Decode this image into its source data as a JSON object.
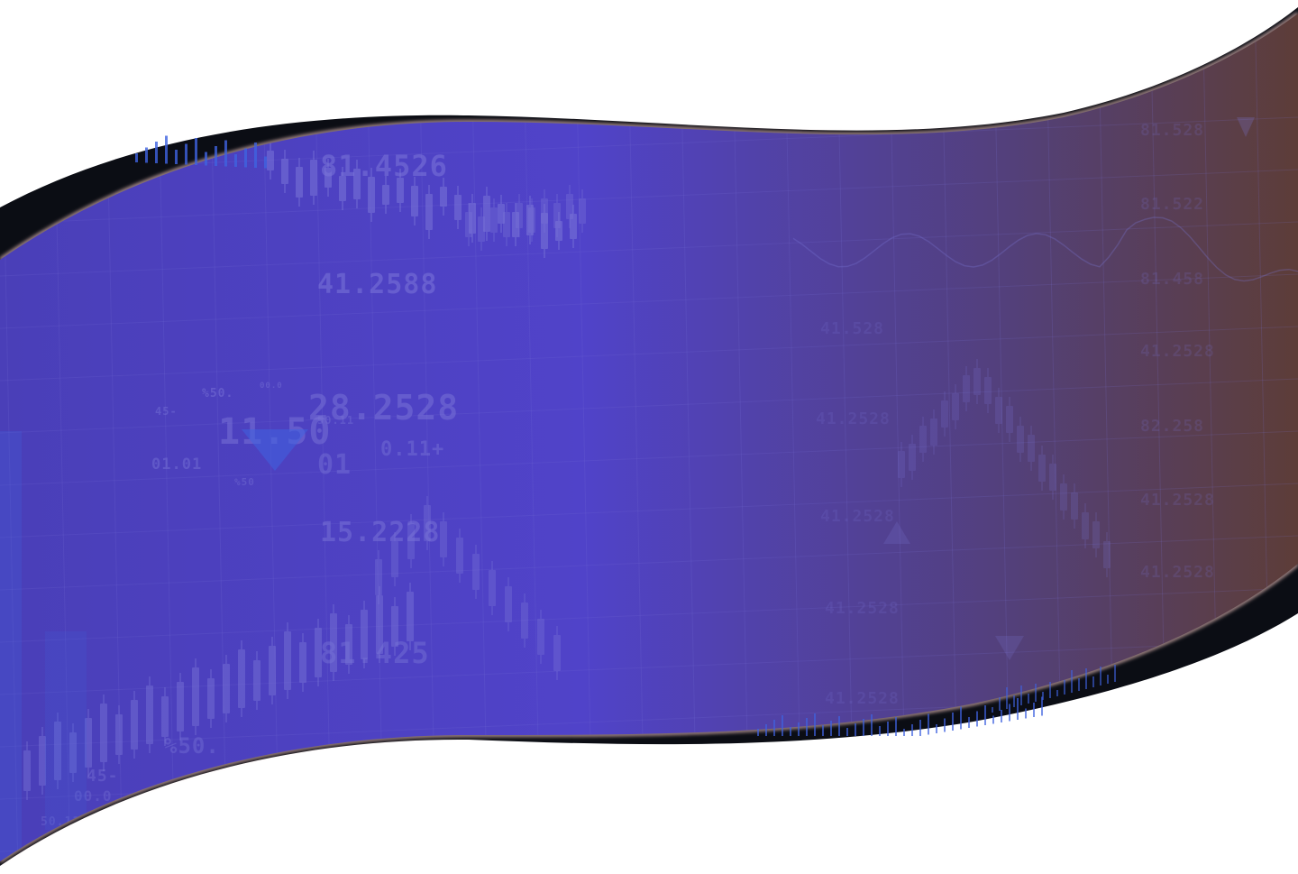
{
  "banner": {
    "colors": {
      "gradient_start": "#4a3fb8",
      "gradient_mid": "#5043c9",
      "gradient_dark": "#53407a",
      "gradient_end": "#5d3d38",
      "edge_dark": "#0b0d14",
      "edge_glow": "#f4c9c4",
      "page_background": "#ffffff",
      "chart_line": "#7b76d8",
      "accent_blue": "#3f63e0"
    },
    "ticker_labels": [
      {
        "text": "81.4526"
      },
      {
        "text": "41.2588"
      },
      {
        "text": "%50."
      },
      {
        "text": "00.0"
      },
      {
        "text": "45-"
      },
      {
        "text": "11.50"
      },
      {
        "text": "28.2528"
      },
      {
        "text": "01.01"
      },
      {
        "text": "50.11"
      },
      {
        "text": "01"
      },
      {
        "text": "0.11+"
      },
      {
        "text": "%50"
      },
      {
        "text": "15.2228"
      },
      {
        "text": "81.425"
      },
      {
        "text": "%50."
      },
      {
        "text": "45-"
      },
      {
        "text": "00.0"
      },
      {
        "text": "50.11"
      }
    ],
    "right_labels": [
      {
        "text": "81.528"
      },
      {
        "text": "81.522"
      },
      {
        "text": "81.458"
      },
      {
        "text": "41.528"
      },
      {
        "text": "82.258"
      },
      {
        "text": "41.2528"
      },
      {
        "text": "41.2528"
      },
      {
        "text": "41.2528"
      },
      {
        "text": "41.2528"
      },
      {
        "text": "41.2528"
      },
      {
        "text": "41.2528"
      },
      {
        "text": "41.2528"
      }
    ]
  }
}
